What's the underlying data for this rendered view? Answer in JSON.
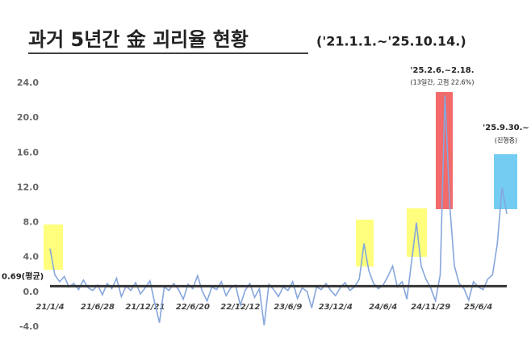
{
  "chart_data": {
    "type": "line",
    "title": "과거 5년간 金 괴리율 현황",
    "subtitle": "('21.1.1.~'25.10.14.)",
    "categories": [
      "21/1/4",
      null,
      null,
      null,
      null,
      null,
      null,
      null,
      null,
      null,
      "21/6/28",
      null,
      null,
      null,
      null,
      null,
      null,
      null,
      null,
      null,
      "21/12/21",
      null,
      null,
      null,
      null,
      null,
      null,
      null,
      null,
      null,
      "22/6/20",
      null,
      null,
      null,
      null,
      null,
      null,
      null,
      null,
      null,
      "22/12/12",
      null,
      null,
      null,
      null,
      null,
      null,
      null,
      null,
      null,
      "23/6/9",
      null,
      null,
      null,
      null,
      null,
      null,
      null,
      null,
      null,
      "23/12/4",
      null,
      null,
      null,
      null,
      null,
      null,
      null,
      null,
      null,
      "24/6/4",
      null,
      null,
      null,
      null,
      null,
      null,
      null,
      null,
      null,
      "24/11/29",
      null,
      null,
      null,
      null,
      null,
      null,
      null,
      null,
      null,
      "25/6/4",
      null,
      null,
      null,
      null,
      null,
      null
    ],
    "series": [
      {
        "color": "#86a6dc",
        "values": [
          5.0,
          2.0,
          1.2,
          1.8,
          0.6,
          1.0,
          0.3,
          1.4,
          0.5,
          0.2,
          0.8,
          -0.3,
          1.0,
          0.4,
          1.6,
          -0.5,
          0.7,
          0.2,
          1.1,
          -0.2,
          0.5,
          1.3,
          -1.2,
          -3.5,
          0.6,
          0.2,
          1.0,
          0.3,
          -0.8,
          0.9,
          0.4,
          1.9,
          0.1,
          -1.0,
          0.6,
          0.3,
          1.2,
          -0.4,
          0.5,
          0.8,
          -1.5,
          0.2,
          1.0,
          -0.6,
          0.4,
          -3.8,
          0.9,
          0.3,
          -0.5,
          0.6,
          0.2,
          1.2,
          -0.7,
          0.5,
          0.1,
          -1.8,
          0.6,
          0.3,
          1.0,
          0.2,
          -0.4,
          0.5,
          1.1,
          0.2,
          0.6,
          1.5,
          5.6,
          2.5,
          1.0,
          0.4,
          0.8,
          1.8,
          3.0,
          0.6,
          1.2,
          -0.8,
          3.6,
          8.0,
          3.0,
          1.5,
          0.5,
          -1.0,
          2.0,
          22.6,
          10.0,
          3.0,
          1.0,
          0.4,
          -0.9,
          1.2,
          0.6,
          0.3,
          1.5,
          2.0,
          5.5,
          12.0,
          9.0
        ]
      }
    ],
    "mean": {
      "value": 0.69,
      "label": "0.69(평균)"
    },
    "ylim": [
      -4,
      24
    ],
    "yticks": [
      {
        "value": -4,
        "label": "-4.0"
      },
      {
        "value": 0,
        "label": "0.0"
      },
      {
        "value": 4,
        "label": "4.0"
      },
      {
        "value": 8,
        "label": "8.0"
      },
      {
        "value": 12,
        "label": "12.0"
      },
      {
        "value": 16,
        "label": "16.0"
      },
      {
        "value": 20,
        "label": "20.0"
      },
      {
        "value": 24,
        "label": "24.0"
      }
    ],
    "annotations": [
      "'25.2.6.~2.18.",
      "(13일간, 고점 22.6%)",
      "'25.9.30.~",
      "(진행중)"
    ]
  }
}
